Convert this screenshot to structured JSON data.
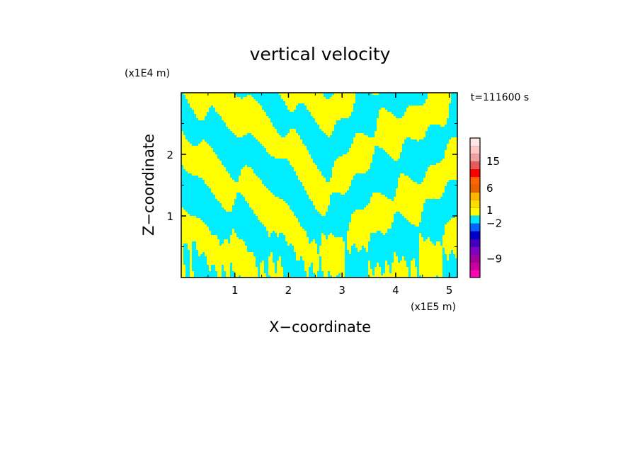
{
  "chart_data": {
    "type": "heatmap",
    "title": "vertical velocity",
    "xlabel": "X−coordinate",
    "ylabel": "Z−coordinate",
    "x_unit": "(x1E5 m)",
    "y_unit": "(x1E4 m)",
    "time_label": "t=111600 s",
    "xlim": [
      0,
      5.15
    ],
    "ylim": [
      0,
      3.0
    ],
    "x_ticks": [
      "1",
      "2",
      "3",
      "4",
      "5"
    ],
    "y_ticks": [
      "1",
      "2"
    ],
    "colorbar": {
      "levels": [
        {
          "color": "#ff00b4"
        },
        {
          "color": "#c800a0"
        },
        {
          "color": "#a000a0"
        },
        {
          "color": "#8000c8"
        },
        {
          "color": "#4000c0"
        },
        {
          "color": "#0000c8"
        },
        {
          "color": "#0064ff"
        },
        {
          "color": "#00e6ff"
        },
        {
          "color": "#ffff00"
        },
        {
          "color": "#ffdc00"
        },
        {
          "color": "#ffb400"
        },
        {
          "color": "#e66400"
        },
        {
          "color": "#ff6400"
        },
        {
          "color": "#ff0000"
        },
        {
          "color": "#e65a5a"
        },
        {
          "color": "#f0a0a0"
        },
        {
          "color": "#ffc8c8"
        },
        {
          "color": "#ffe6e6"
        }
      ],
      "labels": [
        {
          "text": "15",
          "level": 15
        },
        {
          "text": "6",
          "level": 11.5
        },
        {
          "text": "1",
          "level": 8.7
        },
        {
          "text": "−2",
          "level": 7.0
        },
        {
          "text": "−9",
          "level": 2.4
        }
      ]
    },
    "field_colors": {
      "updraft": "#ffff00",
      "downdraft": "#00eeff"
    }
  }
}
